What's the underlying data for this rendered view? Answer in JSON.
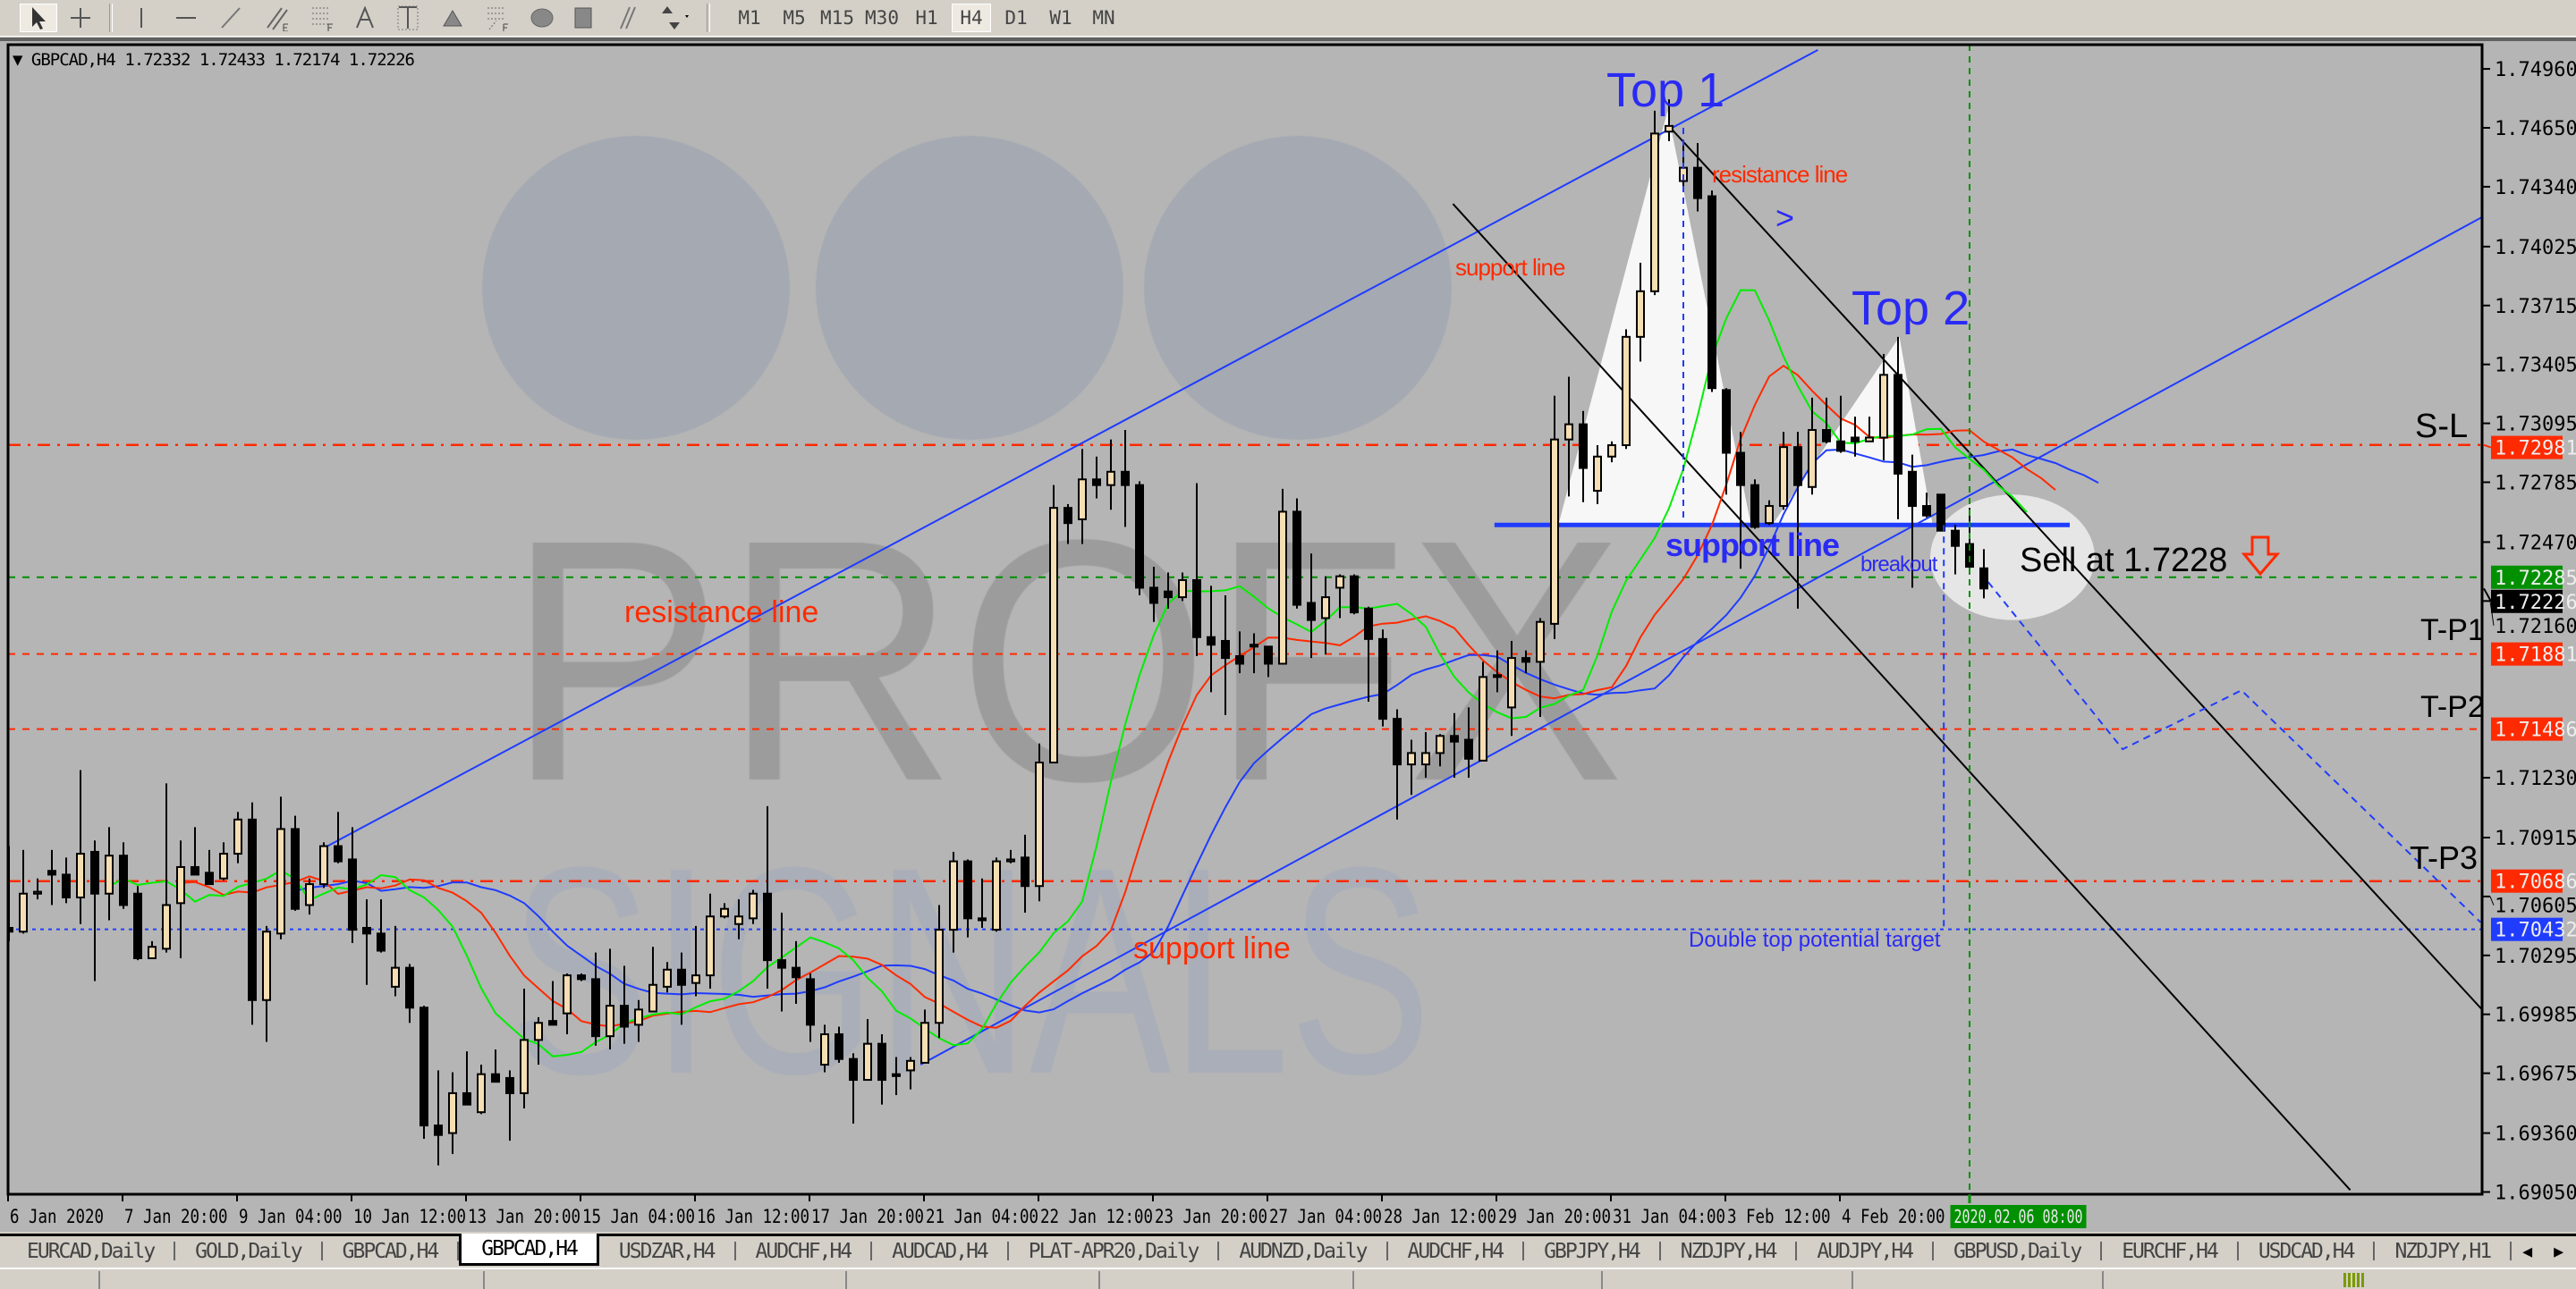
{
  "toolbar": {
    "tools": [
      {
        "icon": "cursor-arrow-icon",
        "active": true
      },
      {
        "icon": "crosshair-icon"
      },
      {
        "icon": "vertical-line-icon"
      },
      {
        "icon": "horizontal-line-icon"
      },
      {
        "icon": "trendline-icon"
      },
      {
        "icon": "equidistant-channel-icon",
        "label": "E"
      },
      {
        "icon": "fibonacci-retracement-icon",
        "label": "F"
      },
      {
        "icon": "text-icon",
        "label": "A"
      },
      {
        "icon": "text-label-icon",
        "label": "T"
      },
      {
        "icon": "triangle-icon"
      },
      {
        "icon": "fibonacci-fan-icon",
        "label": "F"
      },
      {
        "icon": "ellipse-icon"
      },
      {
        "icon": "rectangle-icon"
      },
      {
        "icon": "parallel-lines-icon"
      },
      {
        "icon": "arrows-dropdown-icon"
      }
    ],
    "timeframes": [
      "M1",
      "M5",
      "M15",
      "M30",
      "H1",
      "H4",
      "D1",
      "W1",
      "MN"
    ],
    "active_timeframe": "H4"
  },
  "header": {
    "symbol": "GBPCAD,H4",
    "open": "1.72332",
    "high": "1.72433",
    "low": "1.72174",
    "close": "1.72226"
  },
  "watermark": {
    "line1": "PROFX",
    "line2": "SIGNALS"
  },
  "annotations": {
    "top1": "Top 1",
    "top2": "Top 2",
    "resistance_small": "resistance line",
    "arrow_right": ">",
    "support_small": "support line",
    "support_blue": "support line",
    "breakout": "breakout",
    "sell": "Sell at 1.7228",
    "sl": "S-L",
    "tp1": "T-P1",
    "tp2": "T-P2",
    "tp3": "T-P3",
    "resistance_big": "resistance line",
    "support_big": "support line",
    "double_top_target": "Double top potential target"
  },
  "chart_data": {
    "type": "candlestick",
    "symbol": "GBPCAD",
    "timeframe": "H4",
    "ylim": [
      1.6904,
      1.7509
    ],
    "grid": false,
    "colors": {
      "bull": "#f5deb3",
      "bear": "#000000",
      "background": "#b5b5b5",
      "alligator_jaw": "#1f3cff",
      "alligator_teeth": "#ff2a00",
      "alligator_lips": "#00ee00"
    },
    "price_ticks": [
      "1.74960",
      "1.74650",
      "1.74340",
      "1.74025",
      "1.73715",
      "1.73405",
      "1.73095",
      "1.72785",
      "1.72470",
      "1.72160",
      "1.71230",
      "1.70915",
      "1.70605",
      "1.70295",
      "1.69985",
      "1.69675",
      "1.69360",
      "1.69050"
    ],
    "price_tags": [
      {
        "value": "1.72981",
        "color": "#ff2a00"
      },
      {
        "value": "1.72285",
        "color": "#009000"
      },
      {
        "value": "1.72226",
        "color": "#000000"
      },
      {
        "value": "1.71881",
        "color": "#ff2a00"
      },
      {
        "value": "1.71486",
        "color": "#ff2a00"
      },
      {
        "value": "1.70686",
        "color": "#ff2a00"
      },
      {
        "value": "1.70432",
        "color": "#1f3cff"
      }
    ],
    "time_labels": [
      "6 Jan 2020",
      "7 Jan 20:00",
      "9 Jan 04:00",
      "10 Jan 12:00",
      "13 Jan 20:00",
      "15 Jan 04:00",
      "16 Jan 12:00",
      "17 Jan 20:00",
      "21 Jan 04:00",
      "22 Jan 12:00",
      "23 Jan 20:00",
      "27 Jan 04:00",
      "28 Jan 12:00",
      "29 Jan 20:00",
      "31 Jan 04:00",
      "3 Feb 12:00",
      "4 Feb 20:00"
    ],
    "time_label_every_bars": 8,
    "current_time_label": {
      "text": "2020.02.06 08:00",
      "bar": 137,
      "color": "#009000"
    },
    "ohlc": [
      [
        1.7044,
        1.7087,
        1.7037,
        1.7042
      ],
      [
        1.7042,
        1.7085,
        1.7041,
        1.7062
      ],
      [
        1.7062,
        1.707,
        1.7059,
        1.7063
      ],
      [
        1.7074,
        1.7085,
        1.7056,
        1.7072
      ],
      [
        1.7072,
        1.7081,
        1.7057,
        1.706
      ],
      [
        1.706,
        1.7127,
        1.7046,
        1.7083
      ],
      [
        1.7084,
        1.709,
        1.7016,
        1.7062
      ],
      [
        1.7062,
        1.7097,
        1.7048,
        1.7082
      ],
      [
        1.7082,
        1.7089,
        1.7054,
        1.7056
      ],
      [
        1.7062,
        1.7066,
        1.7027,
        1.7028
      ],
      [
        1.7028,
        1.7037,
        1.7028,
        1.7034
      ],
      [
        1.7033,
        1.712,
        1.7031,
        1.7056
      ],
      [
        1.7057,
        1.709,
        1.7028,
        1.7076
      ],
      [
        1.7076,
        1.7097,
        1.7072,
        1.7072
      ],
      [
        1.7073,
        1.7085,
        1.7067,
        1.7067
      ],
      [
        1.707,
        1.7089,
        1.7069,
        1.7083
      ],
      [
        1.7083,
        1.7105,
        1.7078,
        1.7101
      ],
      [
        1.7101,
        1.711,
        1.6993,
        1.7006
      ],
      [
        1.7006,
        1.7045,
        1.6984,
        1.7042
      ],
      [
        1.7041,
        1.7113,
        1.7038,
        1.7096
      ],
      [
        1.7096,
        1.7103,
        1.7053,
        1.7054
      ],
      [
        1.7056,
        1.707,
        1.7051,
        1.7067
      ],
      [
        1.7067,
        1.7089,
        1.7065,
        1.7087
      ],
      [
        1.7087,
        1.7105,
        1.7078,
        1.7079
      ],
      [
        1.708,
        1.7097,
        1.7036,
        1.7043
      ],
      [
        1.7044,
        1.7059,
        1.7014,
        1.7041
      ],
      [
        1.7041,
        1.7059,
        1.7031,
        1.7032
      ],
      [
        1.7013,
        1.7045,
        1.7008,
        1.7023
      ],
      [
        1.7023,
        1.7025,
        1.6994,
        1.7002
      ],
      [
        1.7002,
        1.7003,
        1.6933,
        1.694
      ],
      [
        1.694,
        1.6969,
        1.6919,
        1.6935
      ],
      [
        1.6936,
        1.6968,
        1.6925,
        1.6957
      ],
      [
        1.6957,
        1.6979,
        1.6951,
        1.6951
      ],
      [
        1.6947,
        1.6972,
        1.6946,
        1.6967
      ],
      [
        1.6967,
        1.698,
        1.6963,
        1.6963
      ],
      [
        1.6965,
        1.6969,
        1.6932,
        1.6957
      ],
      [
        1.6957,
        1.7012,
        1.6949,
        1.6985
      ],
      [
        1.6985,
        1.6997,
        1.6972,
        1.6994
      ],
      [
        1.6995,
        1.7016,
        1.6993,
        1.6993
      ],
      [
        1.6999,
        1.702,
        1.6988,
        1.7019
      ],
      [
        1.7019,
        1.702,
        1.7016,
        1.7017
      ],
      [
        1.7017,
        1.7031,
        1.6982,
        1.6987
      ],
      [
        1.6987,
        1.7033,
        1.698,
        1.7003
      ],
      [
        1.7003,
        1.7024,
        1.6983,
        1.6992
      ],
      [
        1.6993,
        1.7006,
        1.6984,
        1.7001
      ],
      [
        1.7,
        1.7034,
        1.7,
        1.7014
      ],
      [
        1.7013,
        1.7026,
        1.701,
        1.7022
      ],
      [
        1.7022,
        1.7031,
        1.6993,
        1.7014
      ],
      [
        1.7015,
        1.7045,
        1.7008,
        1.7019
      ],
      [
        1.7019,
        1.7062,
        1.7012,
        1.705
      ],
      [
        1.705,
        1.7057,
        1.7049,
        1.7054
      ],
      [
        1.7046,
        1.7059,
        1.7038,
        1.705
      ],
      [
        1.7049,
        1.7064,
        1.7046,
        1.7062
      ],
      [
        1.7062,
        1.7108,
        1.7012,
        1.7027
      ],
      [
        1.7027,
        1.7052,
        1.7,
        1.7023
      ],
      [
        1.7023,
        1.7037,
        1.7004,
        1.7018
      ],
      [
        1.7017,
        1.702,
        1.6984,
        1.6993
      ],
      [
        1.6972,
        1.6993,
        1.6968,
        1.6988
      ],
      [
        1.6988,
        1.6992,
        1.6973,
        1.6975
      ],
      [
        1.6975,
        1.6978,
        1.6941,
        1.6964
      ],
      [
        1.6964,
        1.6996,
        1.6964,
        1.6983
      ],
      [
        1.6983,
        1.6988,
        1.6951,
        1.6964
      ],
      [
        1.6967,
        1.6976,
        1.6956,
        1.6966
      ],
      [
        1.6969,
        1.6976,
        1.6959,
        1.6974
      ],
      [
        1.6973,
        1.7001,
        1.6973,
        1.6994
      ],
      [
        1.6994,
        1.7056,
        1.6986,
        1.7043
      ],
      [
        1.7043,
        1.7084,
        1.7031,
        1.7079
      ],
      [
        1.7079,
        1.708,
        1.7039,
        1.7049
      ],
      [
        1.7049,
        1.707,
        1.7044,
        1.7048
      ],
      [
        1.7043,
        1.7081,
        1.7042,
        1.7079
      ],
      [
        1.7079,
        1.7085,
        1.7078,
        1.708
      ],
      [
        1.7081,
        1.7093,
        1.7052,
        1.7066
      ],
      [
        1.7066,
        1.7141,
        1.7058,
        1.7131
      ],
      [
        1.7131,
        1.7277,
        1.7131,
        1.7265
      ],
      [
        1.7265,
        1.7267,
        1.7246,
        1.7257
      ],
      [
        1.7259,
        1.7296,
        1.7246,
        1.728
      ],
      [
        1.728,
        1.7292,
        1.727,
        1.7277
      ],
      [
        1.7277,
        1.7301,
        1.7264,
        1.7284
      ],
      [
        1.7284,
        1.7306,
        1.7255,
        1.7277
      ],
      [
        1.7277,
        1.7279,
        1.7219,
        1.7223
      ],
      [
        1.7223,
        1.7234,
        1.7205,
        1.7215
      ],
      [
        1.7221,
        1.7231,
        1.7212,
        1.7218
      ],
      [
        1.7218,
        1.7231,
        1.7216,
        1.7227
      ],
      [
        1.7227,
        1.7278,
        1.7187,
        1.7197
      ],
      [
        1.7197,
        1.7224,
        1.7168,
        1.7193
      ],
      [
        1.7195,
        1.7219,
        1.7156,
        1.7186
      ],
      [
        1.7187,
        1.72,
        1.7178,
        1.7183
      ],
      [
        1.7193,
        1.7199,
        1.7178,
        1.7192
      ],
      [
        1.7192,
        1.7192,
        1.7176,
        1.7183
      ],
      [
        1.7183,
        1.7275,
        1.7183,
        1.7263
      ],
      [
        1.7263,
        1.727,
        1.7212,
        1.7214
      ],
      [
        1.7215,
        1.7241,
        1.7186,
        1.7206
      ],
      [
        1.7207,
        1.7229,
        1.7188,
        1.7218
      ],
      [
        1.7223,
        1.723,
        1.7207,
        1.7229
      ],
      [
        1.7229,
        1.723,
        1.7209,
        1.721
      ],
      [
        1.7212,
        1.7213,
        1.7163,
        1.7196
      ],
      [
        1.7196,
        1.7201,
        1.715,
        1.7154
      ],
      [
        1.7154,
        1.7159,
        1.7101,
        1.713
      ],
      [
        1.713,
        1.7143,
        1.7114,
        1.7136
      ],
      [
        1.713,
        1.7147,
        1.7123,
        1.7136
      ],
      [
        1.7136,
        1.7146,
        1.7129,
        1.7145
      ],
      [
        1.7145,
        1.7157,
        1.7123,
        1.7142
      ],
      [
        1.7143,
        1.716,
        1.7123,
        1.7133
      ],
      [
        1.7132,
        1.7184,
        1.7132,
        1.7176
      ],
      [
        1.7177,
        1.719,
        1.7168,
        1.7176
      ],
      [
        1.716,
        1.7195,
        1.7145,
        1.7186
      ],
      [
        1.7186,
        1.719,
        1.7178,
        1.7184
      ],
      [
        1.7184,
        1.7207,
        1.7155,
        1.7205
      ],
      [
        1.7204,
        1.7324,
        1.7196,
        1.7301
      ],
      [
        1.7301,
        1.7334,
        1.7271,
        1.7309
      ],
      [
        1.7309,
        1.7316,
        1.7268,
        1.7286
      ],
      [
        1.7274,
        1.7298,
        1.7267,
        1.7292
      ],
      [
        1.7292,
        1.73,
        1.7289,
        1.7298
      ],
      [
        1.7298,
        1.7359,
        1.7296,
        1.7355
      ],
      [
        1.7355,
        1.7394,
        1.7342,
        1.7379
      ],
      [
        1.7379,
        1.7474,
        1.7377,
        1.7462
      ],
      [
        1.7463,
        1.748,
        1.7458,
        1.7466
      ],
      [
        1.7437,
        1.7458,
        1.7433,
        1.7444
      ],
      [
        1.7444,
        1.7457,
        1.7421,
        1.7428
      ],
      [
        1.7429,
        1.7432,
        1.7326,
        1.7328
      ],
      [
        1.7327,
        1.7328,
        1.7272,
        1.7294
      ],
      [
        1.7294,
        1.7305,
        1.7233,
        1.7277
      ],
      [
        1.7277,
        1.728,
        1.7254,
        1.7255
      ],
      [
        1.7257,
        1.7269,
        1.7256,
        1.7266
      ],
      [
        1.7266,
        1.7305,
        1.7264,
        1.7297
      ],
      [
        1.7297,
        1.7305,
        1.7212,
        1.7277
      ],
      [
        1.7276,
        1.7323,
        1.7272,
        1.7306
      ],
      [
        1.7306,
        1.7323,
        1.7299,
        1.73
      ],
      [
        1.73,
        1.7324,
        1.7294,
        1.7295
      ],
      [
        1.7302,
        1.7313,
        1.7292,
        1.73
      ],
      [
        1.73,
        1.7313,
        1.73,
        1.7302
      ],
      [
        1.7302,
        1.7346,
        1.729,
        1.7335
      ],
      [
        1.7335,
        1.7355,
        1.7259,
        1.7283
      ],
      [
        1.7284,
        1.7293,
        1.7223,
        1.7266
      ],
      [
        1.7266,
        1.7273,
        1.726,
        1.7261
      ],
      [
        1.7272,
        1.7272,
        1.7253,
        1.7253
      ],
      [
        1.7253,
        1.7256,
        1.723,
        1.7245
      ],
      [
        1.7246,
        1.7265,
        1.723,
        1.7234
      ],
      [
        1.72332,
        1.72433,
        1.72174,
        1.72226
      ]
    ],
    "levels": [
      {
        "label": "S-L",
        "price": 1.72981,
        "color": "#ff2a00",
        "style": "dashdot"
      },
      {
        "price": 1.72285,
        "color": "#009000",
        "style": "dashed"
      },
      {
        "label": "T-P1",
        "price": 1.71881,
        "color": "#ff2a00",
        "style": "dashed"
      },
      {
        "label": "T-P2",
        "price": 1.71486,
        "color": "#ff2a00",
        "style": "dashed"
      },
      {
        "label": "T-P3",
        "price": 1.70686,
        "color": "#ff2a00",
        "style": "dashdot"
      },
      {
        "label": "Double top potential target",
        "price": 1.70432,
        "color": "#1f3cff",
        "style": "dotted"
      }
    ],
    "trendlines": [
      {
        "from": [
          21.75,
          1.7085
        ],
        "to": [
          126.4,
          1.7506
        ],
        "color": "#1f3cff"
      },
      {
        "from": [
          63.7,
          1.6972
        ],
        "to": [
          173.3,
          1.742
        ],
        "color": "#1f3cff"
      },
      {
        "from": [
          103.8,
          1.7256
        ],
        "to": [
          144,
          1.7256
        ],
        "color": "#1f3cff",
        "thick": true
      },
      {
        "from": [
          100.9,
          1.7425
        ],
        "to": [
          163.6,
          1.6906
        ],
        "color": "#000000"
      },
      {
        "from": [
          116.1,
          1.7465
        ],
        "to": [
          173.3,
          1.6997
        ],
        "color": "#000000"
      }
    ],
    "vertical_lines": [
      {
        "bar": 117,
        "from": 1.7465,
        "to": 1.7256,
        "color": "#1f3cff"
      },
      {
        "bar": 135.2,
        "from": 1.7256,
        "to": 1.70432,
        "color": "#1f3cff"
      },
      {
        "bar": 137,
        "color": "#009000"
      }
    ],
    "projection": [
      [
        138.3,
        1.7226
      ],
      [
        147.7,
        1.7138
      ],
      [
        156,
        1.7169
      ],
      [
        172.7,
        1.7047
      ]
    ],
    "highlight_triangles": [
      [
        [
          108.3,
          1.7257
        ],
        [
          115.9,
          1.7474
        ],
        [
          121.7,
          1.7257
        ]
      ],
      [
        [
          123.3,
          1.7257
        ],
        [
          132.1,
          1.7355
        ],
        [
          134.4,
          1.7257
        ]
      ]
    ],
    "highlight_ellipse": {
      "center": [
        140,
        1.7239
      ],
      "rx_bars": 5.75,
      "ry_price": 0.0033
    }
  },
  "tabs": [
    {
      "label": "EURCAD,Daily"
    },
    {
      "label": "GOLD,Daily"
    },
    {
      "label": "GBPCAD,H4"
    },
    {
      "label": "GBPCAD,H4",
      "active": true
    },
    {
      "label": "USDZAR,H4"
    },
    {
      "label": "AUDCHF,H4"
    },
    {
      "label": "AUDCAD,H4"
    },
    {
      "label": "PLAT-APR20,Daily"
    },
    {
      "label": "AUDNZD,Daily"
    },
    {
      "label": "AUDCHF,H4"
    },
    {
      "label": "GBPJPY,H4"
    },
    {
      "label": "NZDJPY,H4"
    },
    {
      "label": "AUDJPY,H4"
    },
    {
      "label": "GBPUSD,Daily"
    },
    {
      "label": "EURCHF,H4"
    },
    {
      "label": "USDCAD,H4"
    },
    {
      "label": "NZDJPY,H1"
    }
  ],
  "tab_arrows": {
    "left": "◂",
    "right": "▸"
  }
}
